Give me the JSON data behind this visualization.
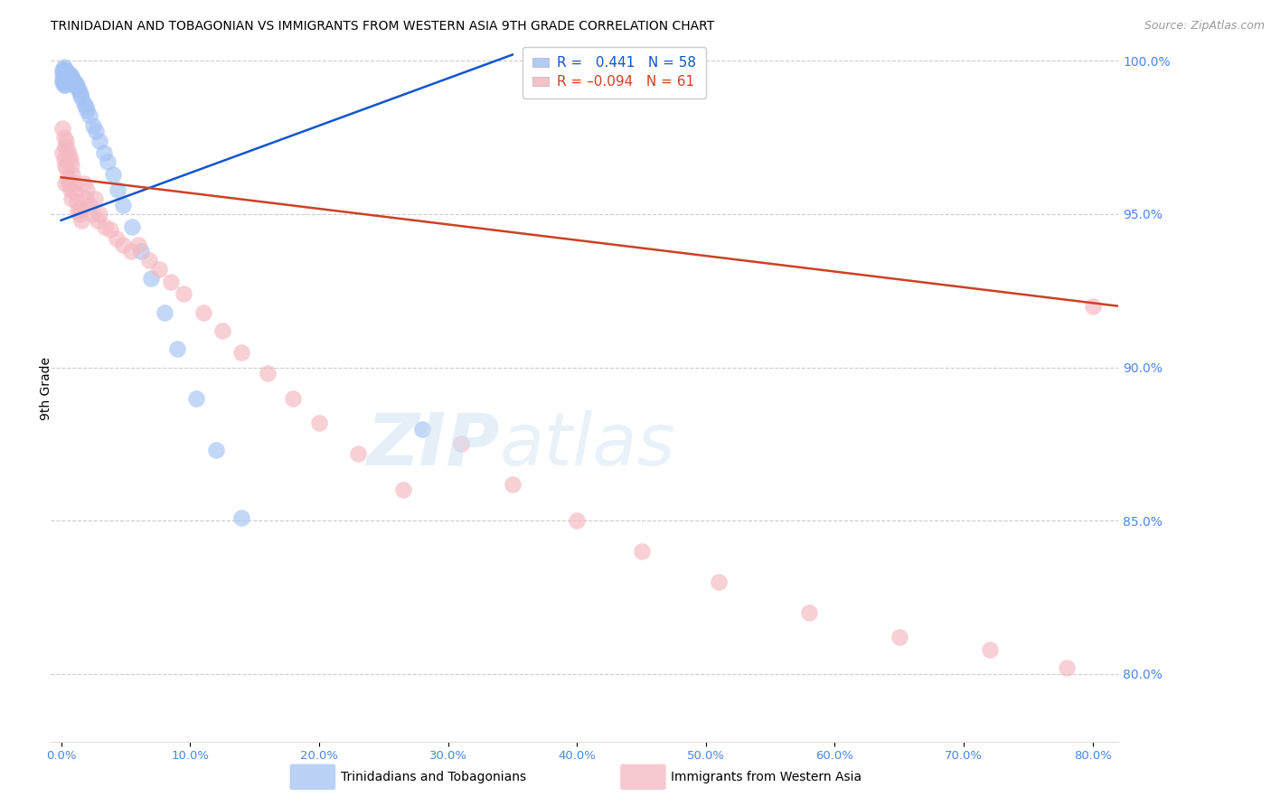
{
  "title": "TRINIDADIAN AND TOBAGONIAN VS IMMIGRANTS FROM WESTERN ASIA 9TH GRADE CORRELATION CHART",
  "source": "Source: ZipAtlas.com",
  "ylabel": "9th Grade",
  "right_ytick_labels": [
    "100.0%",
    "95.0%",
    "90.0%",
    "85.0%",
    "80.0%"
  ],
  "right_ytick_values": [
    1.0,
    0.95,
    0.9,
    0.85,
    0.8
  ],
  "ylim": [
    0.778,
    1.008
  ],
  "xlim": [
    -0.008,
    0.82
  ],
  "blue_color": "#a4c2f4",
  "pink_color": "#f4b8c1",
  "blue_line_color": "#1155cc",
  "pink_line_color": "#cc4125",
  "axis_label_color": "#4a86e8",
  "watermark_zip_color": "#cfe2f3",
  "watermark_atlas_color": "#cfe2f3",
  "blue_scatter_x": [
    0.001,
    0.001,
    0.001,
    0.001,
    0.002,
    0.002,
    0.002,
    0.002,
    0.002,
    0.003,
    0.003,
    0.003,
    0.003,
    0.003,
    0.004,
    0.004,
    0.004,
    0.004,
    0.005,
    0.005,
    0.005,
    0.006,
    0.006,
    0.006,
    0.007,
    0.007,
    0.008,
    0.008,
    0.009,
    0.01,
    0.01,
    0.011,
    0.012,
    0.013,
    0.014,
    0.015,
    0.016,
    0.018,
    0.019,
    0.02,
    0.022,
    0.025,
    0.027,
    0.03,
    0.033,
    0.036,
    0.04,
    0.044,
    0.048,
    0.055,
    0.062,
    0.07,
    0.08,
    0.09,
    0.105,
    0.12,
    0.14,
    0.28
  ],
  "blue_scatter_y": [
    0.997,
    0.996,
    0.994,
    0.993,
    0.998,
    0.997,
    0.996,
    0.994,
    0.992,
    0.997,
    0.996,
    0.995,
    0.993,
    0.992,
    0.996,
    0.995,
    0.994,
    0.993,
    0.996,
    0.995,
    0.993,
    0.996,
    0.995,
    0.994,
    0.995,
    0.994,
    0.995,
    0.993,
    0.994,
    0.993,
    0.992,
    0.993,
    0.992,
    0.991,
    0.99,
    0.989,
    0.988,
    0.986,
    0.985,
    0.984,
    0.982,
    0.979,
    0.977,
    0.974,
    0.97,
    0.967,
    0.963,
    0.958,
    0.953,
    0.946,
    0.938,
    0.929,
    0.918,
    0.906,
    0.89,
    0.873,
    0.851,
    0.88
  ],
  "pink_scatter_x": [
    0.001,
    0.001,
    0.002,
    0.002,
    0.003,
    0.003,
    0.003,
    0.004,
    0.004,
    0.005,
    0.005,
    0.006,
    0.006,
    0.007,
    0.007,
    0.008,
    0.008,
    0.009,
    0.01,
    0.011,
    0.012,
    0.013,
    0.014,
    0.015,
    0.016,
    0.018,
    0.019,
    0.02,
    0.022,
    0.024,
    0.026,
    0.028,
    0.03,
    0.034,
    0.038,
    0.043,
    0.048,
    0.054,
    0.06,
    0.068,
    0.076,
    0.085,
    0.095,
    0.11,
    0.125,
    0.14,
    0.16,
    0.18,
    0.2,
    0.23,
    0.265,
    0.31,
    0.35,
    0.4,
    0.45,
    0.51,
    0.58,
    0.65,
    0.72,
    0.78,
    0.8
  ],
  "pink_scatter_y": [
    0.978,
    0.97,
    0.975,
    0.968,
    0.972,
    0.966,
    0.96,
    0.974,
    0.965,
    0.971,
    0.962,
    0.969,
    0.96,
    0.968,
    0.958,
    0.966,
    0.955,
    0.963,
    0.96,
    0.957,
    0.954,
    0.951,
    0.95,
    0.952,
    0.948,
    0.96,
    0.955,
    0.958,
    0.953,
    0.95,
    0.955,
    0.948,
    0.95,
    0.946,
    0.945,
    0.942,
    0.94,
    0.938,
    0.94,
    0.935,
    0.932,
    0.928,
    0.924,
    0.918,
    0.912,
    0.905,
    0.898,
    0.89,
    0.882,
    0.872,
    0.86,
    0.875,
    0.862,
    0.85,
    0.84,
    0.83,
    0.82,
    0.812,
    0.808,
    0.802,
    0.92
  ],
  "blue_trendline_x": [
    0.0,
    0.35
  ],
  "blue_trendline_y": [
    0.948,
    1.002
  ],
  "pink_trendline_x": [
    0.0,
    0.82
  ],
  "pink_trendline_y": [
    0.962,
    0.92
  ]
}
